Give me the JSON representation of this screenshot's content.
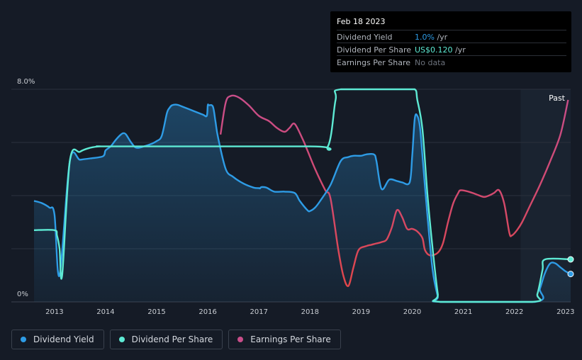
{
  "tooltip": {
    "date": "Feb 18 2023",
    "rows": [
      {
        "label": "Dividend Yield",
        "value": "1.0%",
        "unit": " /yr",
        "color": "#2e9ce6"
      },
      {
        "label": "Dividend Per Share",
        "value": "US$0.120",
        "unit": " /yr",
        "color": "#5eead4"
      },
      {
        "label": "Earnings Per Share",
        "value": "No data",
        "unit": "",
        "color": "#6b717b"
      }
    ]
  },
  "colors": {
    "background": "#151b26",
    "dividend_yield": "#2e9ce6",
    "dividend_per_share": "#5eead4",
    "earnings_per_share_pink": "#c94e8a",
    "earnings_per_share_red": "#e0464a",
    "grid": "#2a313d",
    "axis_text": "#c9cdd3"
  },
  "chart_data": {
    "type": "line",
    "title": "",
    "xlabel": "",
    "ylabel": "",
    "ylim": [
      0,
      8
    ],
    "xlim": [
      2012.6,
      2023.1
    ],
    "y_ticks": [
      {
        "value": 0,
        "label": "0%"
      },
      {
        "value": 8,
        "label": "8.0%"
      }
    ],
    "y_grid": [
      0,
      2,
      4,
      6,
      8
    ],
    "x_ticks": [
      "2013",
      "2014",
      "2015",
      "2016",
      "2017",
      "2018",
      "2019",
      "2020",
      "2021",
      "2022",
      "2023"
    ],
    "past_region_start": 2022.12,
    "past_label": "Past",
    "legend_position": "bottom-left",
    "series": [
      {
        "name": "Dividend Yield",
        "key": "dividend_yield",
        "area": true,
        "x": [
          2012.6,
          2012.75,
          2012.9,
          2013.0,
          2013.1,
          2013.3,
          2013.5,
          2013.7,
          2013.95,
          2014.0,
          2014.1,
          2014.2,
          2014.3,
          2014.35,
          2014.4,
          2014.5,
          2014.6,
          2014.75,
          2014.9,
          2015.0,
          2015.1,
          2015.2,
          2015.25,
          2015.3,
          2015.4,
          2015.5,
          2015.7,
          2015.9,
          2015.98,
          2016.0,
          2016.02,
          2016.1,
          2016.15,
          2016.2,
          2016.35,
          2016.5,
          2016.7,
          2016.9,
          2017.0,
          2017.02,
          2017.05,
          2017.15,
          2017.3,
          2017.5,
          2017.7,
          2017.8,
          2017.95,
          2018.0,
          2018.1,
          2018.2,
          2018.4,
          2018.6,
          2018.75,
          2018.85,
          2019.0,
          2019.1,
          2019.25,
          2019.3,
          2019.4,
          2019.55,
          2019.7,
          2019.8,
          2019.95,
          2020.0,
          2020.05,
          2020.1,
          2020.15,
          2020.2,
          2020.3,
          2020.4,
          2020.5,
          2020.55,
          2022.4,
          2022.5,
          2022.6,
          2022.7,
          2022.8,
          2022.9,
          2023.0,
          2023.1
        ],
        "values": [
          3.8,
          3.72,
          3.55,
          3.3,
          1.0,
          5.3,
          5.35,
          5.4,
          5.48,
          5.7,
          5.85,
          6.1,
          6.3,
          6.35,
          6.3,
          6.0,
          5.8,
          5.85,
          5.95,
          6.05,
          6.25,
          7.1,
          7.3,
          7.4,
          7.42,
          7.35,
          7.2,
          7.05,
          7.0,
          7.4,
          7.4,
          7.35,
          6.8,
          6.2,
          5.0,
          4.7,
          4.45,
          4.3,
          4.28,
          4.27,
          4.32,
          4.3,
          4.15,
          4.15,
          4.1,
          3.8,
          3.45,
          3.42,
          3.55,
          3.8,
          4.4,
          5.3,
          5.45,
          5.5,
          5.5,
          5.55,
          5.55,
          5.3,
          4.25,
          4.6,
          4.55,
          4.5,
          4.5,
          5.5,
          6.9,
          7.0,
          6.6,
          5.5,
          3.2,
          1.2,
          0.2,
          0.0,
          0.0,
          0.5,
          1.1,
          1.45,
          1.45,
          1.3,
          1.15,
          1.05
        ]
      },
      {
        "name": "Dividend Per Share",
        "key": "dividend_per_share",
        "x": [
          2012.6,
          2013.0,
          2013.05,
          2013.1,
          2013.15,
          2013.3,
          2013.5,
          2013.7,
          2013.9,
          2014.2,
          2018.0,
          2018.35,
          2018.5,
          2018.6,
          2019.8,
          2020.05,
          2020.1,
          2020.2,
          2020.3,
          2020.4,
          2020.5,
          2020.55,
          2022.35,
          2022.45,
          2022.55,
          2022.6,
          2023.1
        ],
        "values": [
          2.7,
          2.7,
          2.5,
          2.0,
          1.0,
          5.3,
          5.65,
          5.8,
          5.85,
          5.85,
          5.85,
          5.85,
          7.6,
          8.0,
          8.0,
          8.0,
          7.6,
          6.5,
          4.0,
          2.0,
          0.3,
          0.0,
          0.0,
          0.3,
          1.2,
          1.6,
          1.6
        ]
      },
      {
        "name": "Earnings Per Share",
        "key": "earnings_per_share",
        "x": [
          2016.25,
          2016.35,
          2016.45,
          2016.6,
          2016.8,
          2017.0,
          2017.2,
          2017.35,
          2017.5,
          2017.6,
          2017.7,
          2017.85,
          2017.95,
          2018.1,
          2018.3,
          2018.4,
          2018.55,
          2018.65,
          2018.75,
          2018.85,
          2018.95,
          2019.1,
          2019.2,
          2019.3,
          2019.4,
          2019.5,
          2019.6,
          2019.7,
          2019.8,
          2019.9,
          2020.0,
          2020.1,
          2020.2,
          2020.25,
          2020.35,
          2020.5,
          2020.6,
          2020.7,
          2020.8,
          2020.9,
          2020.95,
          2021.1,
          2021.25,
          2021.4,
          2021.5,
          2021.6,
          2021.7,
          2021.8,
          2021.9,
          2021.95,
          2022.05,
          2022.15,
          2022.3,
          2022.5,
          2022.7,
          2022.9,
          2023.05
        ],
        "values": [
          6.3,
          7.5,
          7.75,
          7.7,
          7.4,
          7.0,
          6.8,
          6.55,
          6.4,
          6.55,
          6.7,
          6.15,
          5.7,
          5.0,
          4.2,
          3.9,
          2.0,
          1.0,
          0.6,
          1.3,
          1.95,
          2.1,
          2.15,
          2.2,
          2.25,
          2.35,
          2.8,
          3.45,
          3.2,
          2.75,
          2.75,
          2.65,
          2.4,
          1.95,
          1.75,
          1.85,
          2.2,
          3.0,
          3.7,
          4.1,
          4.2,
          4.15,
          4.05,
          3.95,
          4.0,
          4.1,
          4.2,
          3.7,
          2.6,
          2.5,
          2.7,
          3.0,
          3.6,
          4.4,
          5.3,
          6.3,
          7.6
        ]
      }
    ]
  },
  "legend": [
    {
      "label": "Dividend Yield",
      "color": "#2e9ce6"
    },
    {
      "label": "Dividend Per Share",
      "color": "#5eead4"
    },
    {
      "label": "Earnings Per Share",
      "color": "#c94e8a"
    }
  ]
}
